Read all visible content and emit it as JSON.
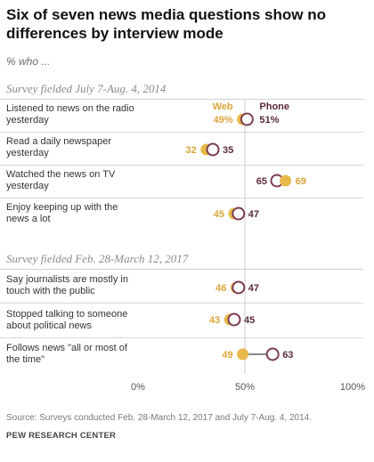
{
  "title": "Six of seven news media questions show no differences by interview mode",
  "subtitle": "% who ...",
  "sections": [
    {
      "label": "Survey fielded July 7-Aug. 4, 2014"
    },
    {
      "label": "Survey fielded Feb. 28-March 12, 2017"
    }
  ],
  "legend": {
    "web": "Web",
    "phone": "Phone"
  },
  "colors": {
    "web": "#e8b94a",
    "phone": "#7d3c4f",
    "connector": "#8a8a8a",
    "web_text": "#d9a53a",
    "phone_text": "#5a2a3a"
  },
  "chart_data": {
    "type": "dot",
    "series": [
      {
        "name": "Web",
        "values": [
          49,
          32,
          69,
          45,
          46,
          43,
          49
        ]
      },
      {
        "name": "Phone",
        "values": [
          51,
          35,
          65,
          47,
          47,
          45,
          63
        ]
      }
    ],
    "categories": [
      "Listened to news on the radio yesterday",
      "Read a daily newspaper yesterday",
      "Watched the news on TV yesterday",
      "Enjoy keeping up with the news a lot",
      "Say journalists are mostly in touch with the public",
      "Stopped talking to someone about political news",
      "Follows news \"all or most of the time\""
    ],
    "labels_web": [
      "49%",
      "32",
      "69",
      "45",
      "46",
      "43",
      "49"
    ],
    "labels_phone": [
      "51%",
      "35",
      "65",
      "47",
      "47",
      "45",
      "63"
    ],
    "highlighted": [
      false,
      false,
      false,
      false,
      false,
      false,
      true
    ],
    "xlim": [
      0,
      100
    ],
    "x_ticks": [
      "0%",
      "50%",
      "100%"
    ]
  },
  "source": "Source: Surveys conducted Feb. 28-March 12, 2017 and July 7-Aug. 4, 2014.",
  "org": "PEW RESEARCH CENTER"
}
